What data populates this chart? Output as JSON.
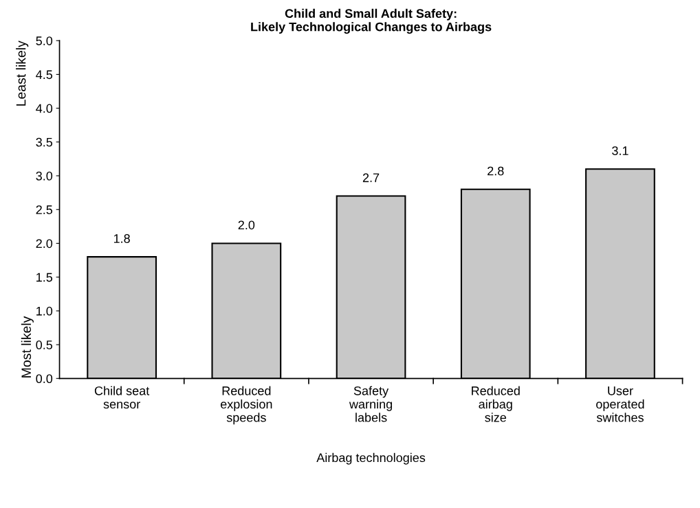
{
  "chart_data": {
    "type": "bar",
    "title": "Child and Small Adult Safety:\nLikely Technological Changes to Airbags",
    "xlabel": "Airbag technologies",
    "ylabel": "Most likely",
    "annotations": [
      "Least likely"
    ],
    "categories": [
      "Child seat\nsensor",
      "Reduced\nexplosion\nspeeds",
      "Safety\nwarning\nlabels",
      "Reduced\nairbag\nsize",
      "User\noperated\nswitches"
    ],
    "values": [
      1.8,
      2.0,
      2.7,
      2.8,
      3.1
    ],
    "color": "#c8c8c8",
    "ylim": [
      0,
      5
    ],
    "yticks": [
      {
        "value": 0,
        "label": "0.0"
      },
      {
        "value": 0.5,
        "label": "0.5"
      },
      {
        "value": 1,
        "label": "1.0"
      },
      {
        "value": 1.5,
        "label": "1.5"
      },
      {
        "value": 2,
        "label": "2.0"
      },
      {
        "value": 2.5,
        "label": "2.5"
      },
      {
        "value": 3,
        "label": "3.0"
      },
      {
        "value": 3.5,
        "label": "3.5"
      },
      {
        "value": 4,
        "label": "4.0"
      },
      {
        "value": 4.5,
        "label": "4.5"
      },
      {
        "value": 5,
        "label": "5.0"
      }
    ],
    "value_labels": [
      "1.8",
      "2.0",
      "2.7",
      "2.8",
      "3.1"
    ],
    "grid": false,
    "legend": false
  }
}
